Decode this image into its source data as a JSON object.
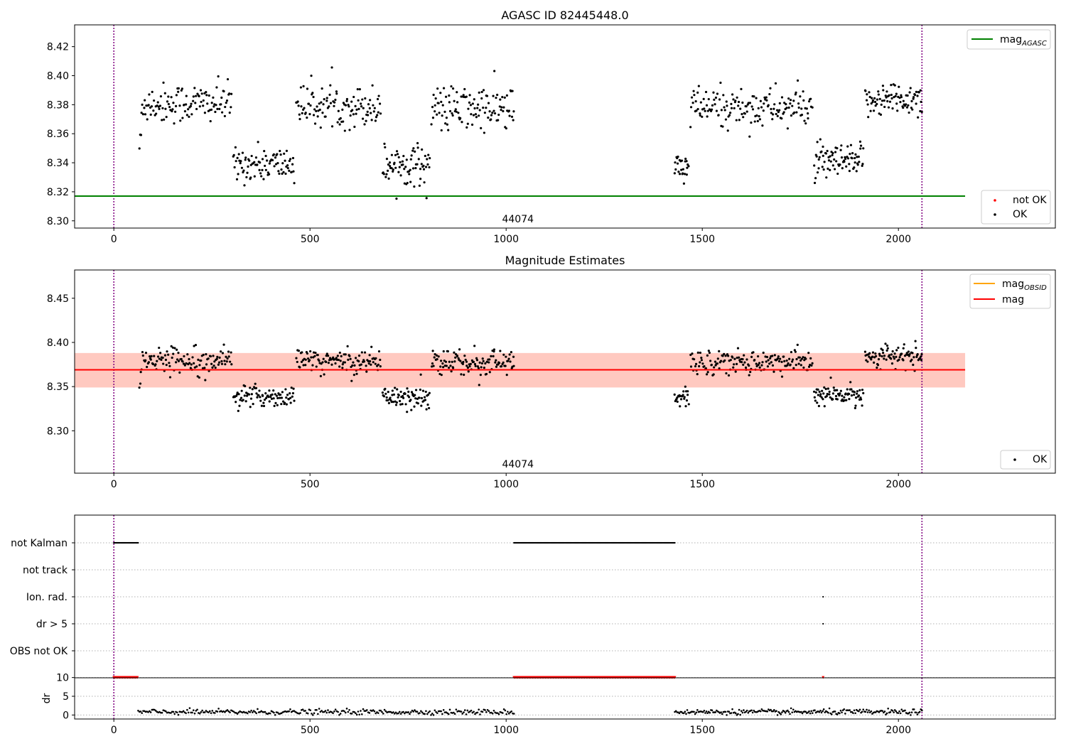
{
  "figure": {
    "colors": {
      "ok": "#000000",
      "not_ok": "#ff0000",
      "agasc_line": "#008000",
      "obsid_line": "#ffa500",
      "mag_line": "#ff0000",
      "band_pink": "#ffc0cb",
      "band_orange": "#ffa07a",
      "obs_boundary": "#800080"
    }
  },
  "chart_data": [
    {
      "type": "scatter",
      "title": "AGASC ID 82445448.0",
      "xlim": [
        -100,
        2400
      ],
      "ylim": [
        8.295,
        8.435
      ],
      "xticks": [
        0,
        500,
        1000,
        1500,
        2000
      ],
      "yticks": [
        8.3,
        8.32,
        8.34,
        8.36,
        8.38,
        8.4,
        8.42
      ],
      "ytick_labels": [
        "8.30",
        "8.32",
        "8.34",
        "8.36",
        "8.38",
        "8.40",
        "8.42"
      ],
      "observation_boundaries": [
        0,
        2060
      ],
      "observation_label": "44074",
      "observation_label_x": 1030,
      "lines": [
        {
          "name": "mag_AGASC",
          "label": "mag",
          "subscript": "AGASC",
          "y": 8.317,
          "x_range": [
            -100,
            2170
          ]
        }
      ],
      "segments": [
        {
          "x": [
            65,
            300
          ],
          "mean": 8.381,
          "spread": 0.007,
          "start": 8.35,
          "n": 120
        },
        {
          "x": [
            305,
            460
          ],
          "mean": 8.339,
          "spread": 0.006,
          "n": 90
        },
        {
          "x": [
            465,
            680
          ],
          "mean": 8.379,
          "spread": 0.007,
          "n": 115
        },
        {
          "x": [
            685,
            805
          ],
          "mean": 8.339,
          "spread": 0.007,
          "n": 75
        },
        {
          "x": [
            810,
            1020
          ],
          "mean": 8.377,
          "spread": 0.008,
          "n": 115
        },
        {
          "x": [
            1430,
            1465
          ],
          "mean": 8.336,
          "spread": 0.007,
          "n": 25
        },
        {
          "x": [
            1470,
            1780
          ],
          "mean": 8.378,
          "spread": 0.007,
          "n": 160
        },
        {
          "x": [
            1785,
            1910
          ],
          "mean": 8.34,
          "spread": 0.006,
          "n": 80
        },
        {
          "x": [
            1915,
            2060
          ],
          "mean": 8.384,
          "spread": 0.006,
          "n": 85
        }
      ],
      "legends": [
        {
          "position": "top-right",
          "entries": [
            {
              "kind": "line",
              "label": "mag",
              "subscript": "AGASC",
              "color": "#008000"
            }
          ]
        },
        {
          "position": "bottom-right",
          "entries": [
            {
              "kind": "marker",
              "label": "not OK",
              "color": "#ff0000"
            },
            {
              "kind": "marker",
              "label": "OK",
              "color": "#000000"
            }
          ]
        }
      ]
    },
    {
      "type": "scatter",
      "title": "Magnitude Estimates",
      "xlim": [
        -100,
        2400
      ],
      "ylim": [
        8.252,
        8.482
      ],
      "xticks": [
        0,
        500,
        1000,
        1500,
        2000
      ],
      "yticks": [
        8.3,
        8.35,
        8.4,
        8.45
      ],
      "ytick_labels": [
        "8.30",
        "8.35",
        "8.40",
        "8.45"
      ],
      "observation_boundaries": [
        0,
        2060
      ],
      "observation_label": "44074",
      "observation_label_x": 1030,
      "bands": [
        {
          "y": [
            8.349,
            8.388
          ],
          "x_range": [
            -100,
            2170
          ],
          "color": "#ffc0cb",
          "opacity": 0.5
        },
        {
          "y": [
            8.349,
            8.388
          ],
          "x_range": [
            -100,
            2170
          ],
          "color": "#ffa07a",
          "opacity": 0.35
        }
      ],
      "lines": [
        {
          "name": "mag_OBSID",
          "label": "mag",
          "subscript": "OBSID",
          "y": 8.369,
          "x_range": [
            -100,
            2170
          ],
          "color": "#ffa500"
        },
        {
          "name": "mag",
          "label": "mag",
          "y": 8.369,
          "x_range": [
            -100,
            2170
          ],
          "color": "#ff0000"
        }
      ],
      "segments": [
        {
          "x": [
            65,
            300
          ],
          "mean": 8.381,
          "spread": 0.007,
          "start": 8.35,
          "n": 120
        },
        {
          "x": [
            305,
            460
          ],
          "mean": 8.339,
          "spread": 0.006,
          "n": 90
        },
        {
          "x": [
            465,
            680
          ],
          "mean": 8.379,
          "spread": 0.007,
          "n": 115
        },
        {
          "x": [
            685,
            805
          ],
          "mean": 8.339,
          "spread": 0.007,
          "n": 75
        },
        {
          "x": [
            810,
            1020
          ],
          "mean": 8.377,
          "spread": 0.008,
          "n": 115
        },
        {
          "x": [
            1430,
            1465
          ],
          "mean": 8.336,
          "spread": 0.007,
          "n": 25
        },
        {
          "x": [
            1470,
            1780
          ],
          "mean": 8.378,
          "spread": 0.007,
          "n": 160
        },
        {
          "x": [
            1785,
            1910
          ],
          "mean": 8.34,
          "spread": 0.006,
          "n": 80
        },
        {
          "x": [
            1915,
            2060
          ],
          "mean": 8.384,
          "spread": 0.006,
          "n": 85
        }
      ],
      "legends": [
        {
          "position": "top-right",
          "entries": [
            {
              "kind": "line",
              "label": "mag",
              "subscript": "OBSID",
              "color": "#ffa500"
            },
            {
              "kind": "line",
              "label": "mag",
              "color": "#ff0000"
            }
          ]
        },
        {
          "position": "bottom-right",
          "entries": [
            {
              "kind": "marker",
              "label": "OK",
              "color": "#000000"
            }
          ]
        }
      ]
    },
    {
      "type": "scatter",
      "title": "",
      "xlim": [
        -100,
        2400
      ],
      "categories": [
        "not Kalman",
        "not track",
        "Ion. rad.",
        "dr > 5",
        "OBS not OK"
      ],
      "observation_boundaries": [
        0,
        2060
      ],
      "flag_series": [
        {
          "category": "not Kalman",
          "ranges": [
            [
              0,
              62
            ],
            [
              1020,
              1430
            ]
          ]
        },
        {
          "category": "Ion. rad.",
          "points": [
            1808
          ]
        },
        {
          "category": "dr > 5",
          "points": [
            1808
          ]
        }
      ],
      "xticks": [
        0,
        500,
        1000,
        1500,
        2000
      ]
    },
    {
      "type": "scatter",
      "title": "",
      "ylabel": "dr",
      "xlim": [
        -100,
        2400
      ],
      "ylim": [
        -0.5,
        10.5
      ],
      "yticks": [
        0,
        5,
        10
      ],
      "ytick_labels": [
        "0",
        "5",
        "10"
      ],
      "xticks": [
        0,
        500,
        1000,
        1500,
        2000
      ],
      "observation_boundaries": [
        0,
        2060
      ],
      "clipped_points": [
        {
          "x_range": [
            0,
            62
          ],
          "y": 10
        },
        {
          "x_range": [
            1020,
            1430
          ],
          "y": 10
        },
        {
          "x": 1808,
          "y": 10
        }
      ],
      "dr_segments": [
        {
          "x": [
            62,
            1020
          ],
          "mean": 0.8,
          "spread": 0.35,
          "n": 300
        },
        {
          "x": [
            1430,
            2060
          ],
          "mean": 0.8,
          "spread": 0.35,
          "n": 220
        }
      ]
    }
  ]
}
